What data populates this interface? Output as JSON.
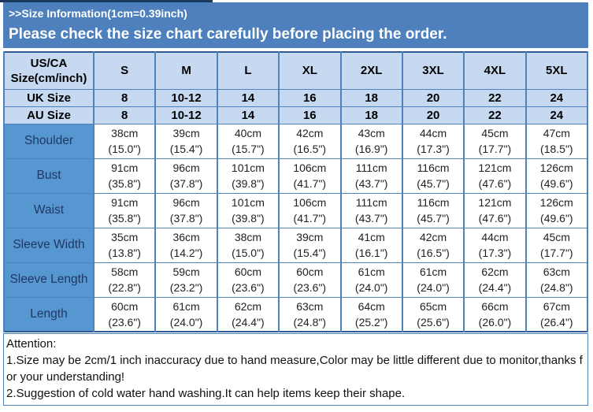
{
  "banner": {
    "title": ">>Size Information(1cm=0.39inch)",
    "subtitle": "Please check the size chart carefully before placing the order."
  },
  "size_table": {
    "corner_label_line1": "US/CA",
    "corner_label_line2": "Size(cm/inch)",
    "size_columns": [
      "S",
      "M",
      "L",
      "XL",
      "2XL",
      "3XL",
      "4XL",
      "5XL"
    ],
    "conversion_rows": [
      {
        "label": "UK Size",
        "values": [
          "8",
          "10-12",
          "14",
          "16",
          "18",
          "20",
          "22",
          "24"
        ]
      },
      {
        "label": "AU Size",
        "values": [
          "8",
          "10-12",
          "14",
          "16",
          "18",
          "20",
          "22",
          "24"
        ]
      }
    ],
    "measurement_rows": [
      {
        "label": "Shoulder",
        "cm": [
          "38cm",
          "39cm",
          "40cm",
          "42cm",
          "43cm",
          "44cm",
          "45cm",
          "47cm"
        ],
        "inch": [
          "(15.0\")",
          "(15.4\")",
          "(15.7\")",
          "(16.5\")",
          "(16.9\")",
          "(17.3\")",
          "(17.7\")",
          "(18.5\")"
        ]
      },
      {
        "label": "Bust",
        "cm": [
          "91cm",
          "96cm",
          "101cm",
          "106cm",
          "111cm",
          "116cm",
          "121cm",
          "126cm"
        ],
        "inch": [
          "(35.8\")",
          "(37.8\")",
          "(39.8\")",
          "(41.7\")",
          "(43.7\")",
          "(45.7\")",
          "(47.6\")",
          "(49.6\")"
        ]
      },
      {
        "label": "Waist",
        "cm": [
          "91cm",
          "96cm",
          "101cm",
          "106cm",
          "111cm",
          "116cm",
          "121cm",
          "126cm"
        ],
        "inch": [
          "(35.8\")",
          "(37.8\")",
          "(39.8\")",
          "(41.7\")",
          "(43.7\")",
          "(45.7\")",
          "(47.6\")",
          "(49.6\")"
        ]
      },
      {
        "label": "Sleeve Width",
        "cm": [
          "35cm",
          "36cm",
          "38cm",
          "39cm",
          "41cm",
          "42cm",
          "44cm",
          "45cm"
        ],
        "inch": [
          "(13.8\")",
          "(14.2\")",
          "(15.0\")",
          "(15.4\")",
          "(16.1\")",
          "(16.5\")",
          "(17.3\")",
          "(17.7\")"
        ]
      },
      {
        "label": "Sleeve Length",
        "cm": [
          "58cm",
          "59cm",
          "60cm",
          "60cm",
          "61cm",
          "61cm",
          "62cm",
          "63cm"
        ],
        "inch": [
          "(22.8\")",
          "(23.2\")",
          "(23.6\")",
          "(23.6\")",
          "(24.0\")",
          "(24.0\")",
          "(24.4\")",
          "(24.8\")"
        ]
      },
      {
        "label": "Length",
        "cm": [
          "60cm",
          "61cm",
          "62cm",
          "63cm",
          "64cm",
          "65cm",
          "66cm",
          "67cm"
        ],
        "inch": [
          "(23.6\")",
          "(24.0\")",
          "(24.4\")",
          "(24.8\")",
          "(25.2\")",
          "(25.6\")",
          "(26.0\")",
          "(26.4\")"
        ]
      }
    ]
  },
  "attention": {
    "heading": "Attention:",
    "notes": [
      "1.Size may be 2cm/1 inch inaccuracy due to hand measure,Color may be little different due to monitor,thanks for your understanding!",
      "2.Suggestion of cold water hand washing.It can help items keep their shape."
    ]
  },
  "colors": {
    "banner_blue": "#4D80BC",
    "header_light_blue": "#C6D9F1",
    "label_cell_blue": "#5697D2",
    "border_blue": "#4F81BD",
    "outer_border": "#2F5D93",
    "dark_navy_accent": "#1B3A60",
    "label_text": "#203864"
  }
}
